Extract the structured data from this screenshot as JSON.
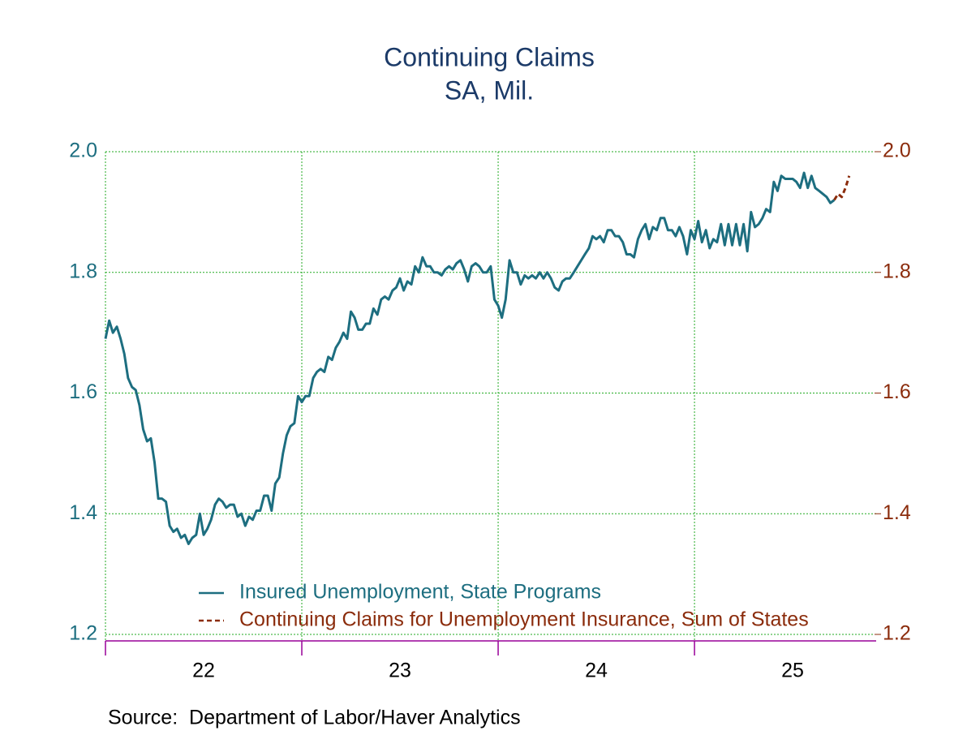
{
  "chart_data": {
    "type": "line",
    "title": "Continuing Claims",
    "subtitle": "SA, Mil.",
    "source": "Source:  Department of Labor/Haver Analytics",
    "xlim": [
      2022,
      2025.917
    ],
    "xticks": [
      {
        "value": 2022.5,
        "label": "22"
      },
      {
        "value": 2023.5,
        "label": "23"
      },
      {
        "value": 2024.5,
        "label": "24"
      },
      {
        "value": 2025.5,
        "label": "25"
      }
    ],
    "xgrid": [
      2022,
      2023,
      2024,
      2025
    ],
    "ylim": [
      1.2,
      2.0
    ],
    "yticks": [
      1.2,
      1.4,
      1.6,
      1.8,
      {
        "value": 2,
        "label": "2.0"
      }
    ],
    "y2lim": [
      1.2,
      2.0
    ],
    "y2ticks": [
      1.2,
      1.4,
      1.6,
      1.8,
      {
        "value": 2,
        "label": "2.0"
      }
    ],
    "grid": true,
    "legend": "bottom-left",
    "series": [
      {
        "name": "Insured Unemployment, State Programs",
        "color": "#1d6e80",
        "dash": false,
        "x": [
          2022,
          2022.019,
          2022.038,
          2022.058,
          2022.077,
          2022.096,
          2022.115,
          2022.135,
          2022.154,
          2022.173,
          2022.192,
          2022.212,
          2022.231,
          2022.25,
          2022.269,
          2022.288,
          2022.308,
          2022.327,
          2022.346,
          2022.365,
          2022.385,
          2022.404,
          2022.423,
          2022.442,
          2022.462,
          2022.481,
          2022.5,
          2022.519,
          2022.538,
          2022.558,
          2022.577,
          2022.596,
          2022.615,
          2022.635,
          2022.654,
          2022.673,
          2022.692,
          2022.712,
          2022.731,
          2022.75,
          2022.769,
          2022.788,
          2022.808,
          2022.827,
          2022.846,
          2022.865,
          2022.885,
          2022.904,
          2022.923,
          2022.942,
          2022.962,
          2022.981,
          2023,
          2023.019,
          2023.038,
          2023.058,
          2023.077,
          2023.096,
          2023.115,
          2023.135,
          2023.154,
          2023.173,
          2023.192,
          2023.212,
          2023.231,
          2023.25,
          2023.269,
          2023.288,
          2023.308,
          2023.327,
          2023.346,
          2023.365,
          2023.385,
          2023.404,
          2023.423,
          2023.442,
          2023.462,
          2023.481,
          2023.5,
          2023.519,
          2023.538,
          2023.558,
          2023.577,
          2023.596,
          2023.615,
          2023.635,
          2023.654,
          2023.673,
          2023.692,
          2023.712,
          2023.731,
          2023.75,
          2023.769,
          2023.788,
          2023.808,
          2023.827,
          2023.846,
          2023.865,
          2023.885,
          2023.904,
          2023.923,
          2023.942,
          2023.962,
          2023.981,
          2024,
          2024.019,
          2024.038,
          2024.058,
          2024.077,
          2024.096,
          2024.115,
          2024.135,
          2024.154,
          2024.173,
          2024.192,
          2024.212,
          2024.231,
          2024.25,
          2024.269,
          2024.288,
          2024.308,
          2024.327,
          2024.346,
          2024.365,
          2024.385,
          2024.404,
          2024.423,
          2024.442,
          2024.462,
          2024.481,
          2024.5,
          2024.519,
          2024.538,
          2024.558,
          2024.577,
          2024.596,
          2024.615,
          2024.635,
          2024.654,
          2024.673,
          2024.692,
          2024.712,
          2024.731,
          2024.75,
          2024.769,
          2024.788,
          2024.808,
          2024.827,
          2024.846,
          2024.865,
          2024.885,
          2024.904,
          2024.923,
          2024.942,
          2024.962,
          2024.981,
          2025,
          2025.019,
          2025.038,
          2025.058,
          2025.077,
          2025.096,
          2025.115,
          2025.135,
          2025.154,
          2025.173,
          2025.192,
          2025.212,
          2025.231,
          2025.25,
          2025.269,
          2025.288,
          2025.308,
          2025.327,
          2025.346,
          2025.365,
          2025.385,
          2025.404,
          2025.423,
          2025.442,
          2025.462,
          2025.481,
          2025.5,
          2025.519,
          2025.538,
          2025.558,
          2025.577,
          2025.596,
          2025.615,
          2025.635,
          2025.654,
          2025.673,
          2025.692,
          2025.712
        ],
        "values": [
          1.69,
          1.72,
          1.7,
          1.71,
          1.69,
          1.665,
          1.625,
          1.61,
          1.605,
          1.58,
          1.54,
          1.52,
          1.525,
          1.485,
          1.425,
          1.425,
          1.42,
          1.38,
          1.37,
          1.375,
          1.36,
          1.365,
          1.35,
          1.36,
          1.365,
          1.4,
          1.365,
          1.375,
          1.39,
          1.415,
          1.425,
          1.42,
          1.41,
          1.415,
          1.415,
          1.395,
          1.4,
          1.38,
          1.395,
          1.39,
          1.405,
          1.405,
          1.43,
          1.43,
          1.405,
          1.45,
          1.46,
          1.5,
          1.53,
          1.545,
          1.55,
          1.595,
          1.585,
          1.595,
          1.595,
          1.625,
          1.635,
          1.64,
          1.635,
          1.66,
          1.655,
          1.675,
          1.685,
          1.7,
          1.69,
          1.735,
          1.725,
          1.705,
          1.705,
          1.715,
          1.715,
          1.74,
          1.73,
          1.755,
          1.76,
          1.755,
          1.77,
          1.775,
          1.79,
          1.77,
          1.785,
          1.78,
          1.81,
          1.8,
          1.825,
          1.81,
          1.81,
          1.8,
          1.8,
          1.795,
          1.805,
          1.81,
          1.805,
          1.815,
          1.82,
          1.805,
          1.785,
          1.81,
          1.815,
          1.81,
          1.8,
          1.8,
          1.81,
          1.755,
          1.745,
          1.725,
          1.755,
          1.82,
          1.8,
          1.8,
          1.78,
          1.795,
          1.79,
          1.795,
          1.79,
          1.8,
          1.79,
          1.8,
          1.79,
          1.775,
          1.77,
          1.785,
          1.79,
          1.79,
          1.8,
          1.81,
          1.82,
          1.83,
          1.84,
          1.86,
          1.855,
          1.86,
          1.85,
          1.87,
          1.87,
          1.86,
          1.86,
          1.85,
          1.83,
          1.83,
          1.825,
          1.855,
          1.87,
          1.88,
          1.855,
          1.875,
          1.87,
          1.89,
          1.89,
          1.87,
          1.87,
          1.86,
          1.875,
          1.86,
          1.83,
          1.87,
          1.855,
          1.885,
          1.85,
          1.87,
          1.84,
          1.855,
          1.85,
          1.88,
          1.845,
          1.88,
          1.845,
          1.88,
          1.845,
          1.88,
          1.835,
          1.9,
          1.875,
          1.88,
          1.89,
          1.905,
          1.9,
          1.95,
          1.935,
          1.96,
          1.955,
          1.955,
          1.955,
          1.95,
          1.94,
          1.965,
          1.94,
          1.96,
          1.94,
          1.935,
          1.93,
          1.925,
          1.915,
          1.92
        ]
      },
      {
        "name": "Continuing Claims for Unemployment Insurance, Sum of States",
        "color": "#8b2c0c",
        "dash": true,
        "axis": "y2",
        "x": [
          2025.712,
          2025.731,
          2025.75,
          2025.769,
          2025.788
        ],
        "values": [
          1.92,
          1.93,
          1.925,
          1.94,
          1.96
        ]
      }
    ]
  }
}
